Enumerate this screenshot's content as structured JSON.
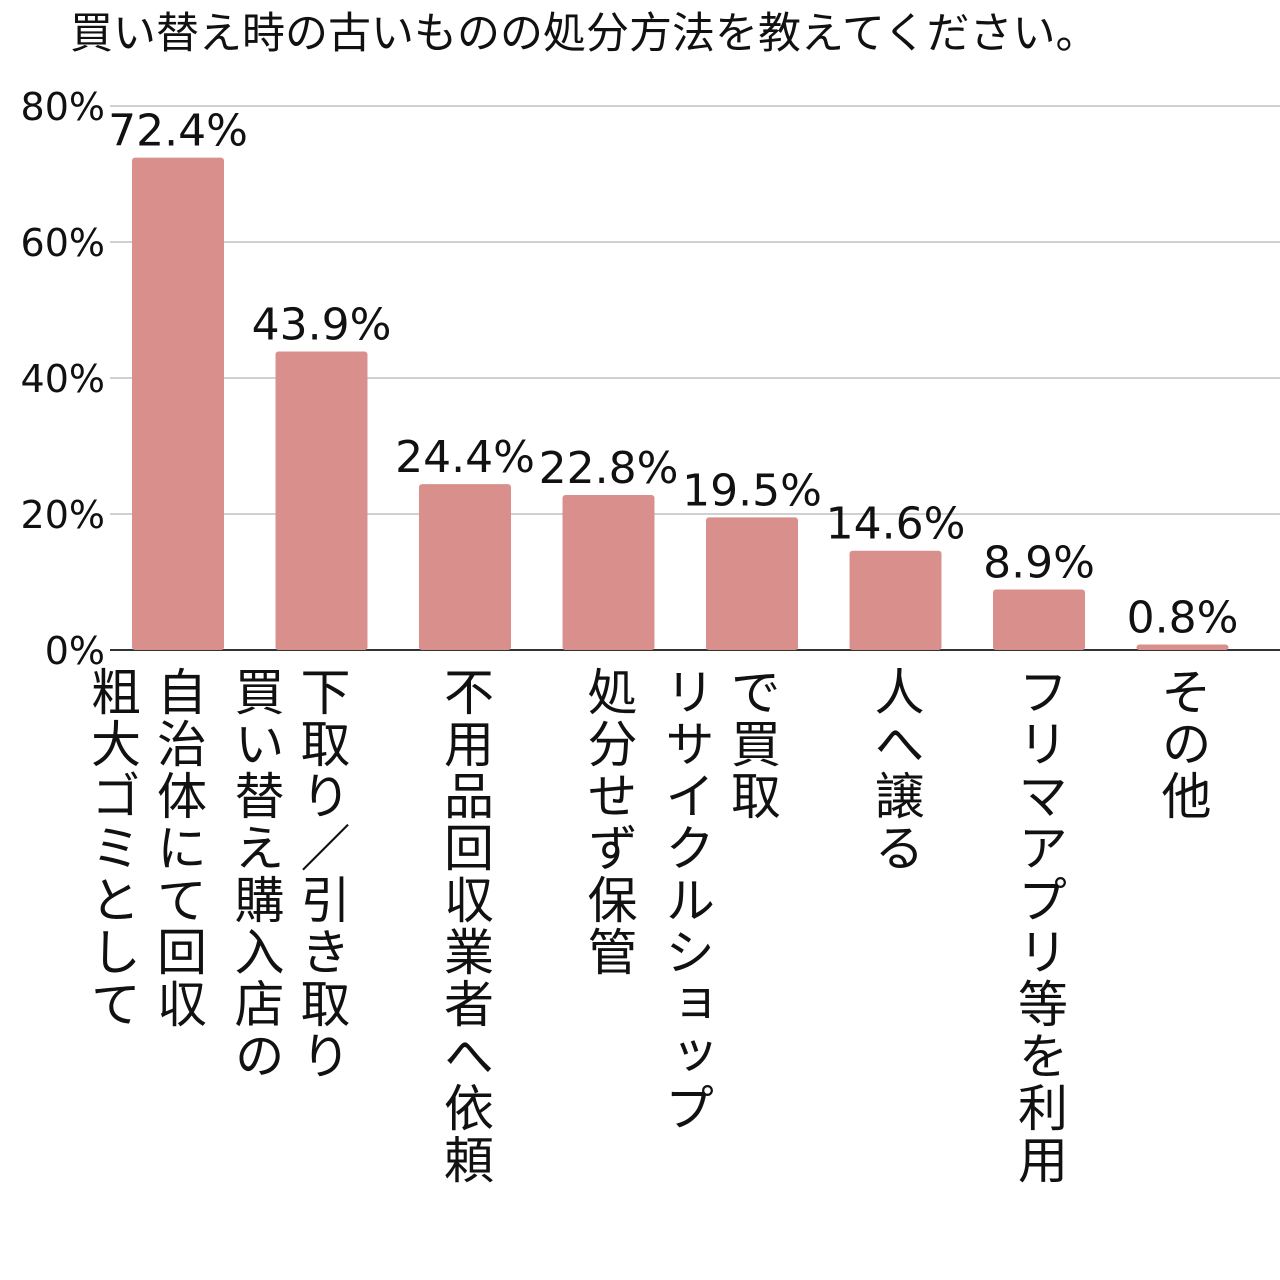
{
  "chart_data": {
    "type": "bar",
    "title": "買い替え時の古いものの処分方法を教えてください。",
    "categories": [
      "自治体にて回収\n粗大ゴミとして",
      "下取り／引き取り\n買い替え購入店の",
      "不用品回収業者へ依頼",
      "処分せず保管",
      "で買取\nリサイクルショップ",
      "人へ譲る",
      "フリマアプリ等を利用",
      "その他"
    ],
    "values": [
      72.4,
      43.9,
      24.4,
      22.8,
      19.5,
      14.6,
      8.9,
      0.8
    ],
    "value_labels": [
      "72.4%",
      "43.9%",
      "24.4%",
      "22.8%",
      "19.5%",
      "14.6%",
      "8.9%",
      "0.8%"
    ],
    "y_ticks": [
      "0%",
      "20%",
      "40%",
      "60%",
      "80%"
    ],
    "y_tick_values": [
      0,
      20,
      40,
      60,
      80
    ],
    "ylim": [
      0,
      80
    ],
    "grid": true,
    "legend": "none",
    "bar_color": "#d9908c",
    "grid_color": "#d0d0d0",
    "axis_color": "#333333"
  }
}
